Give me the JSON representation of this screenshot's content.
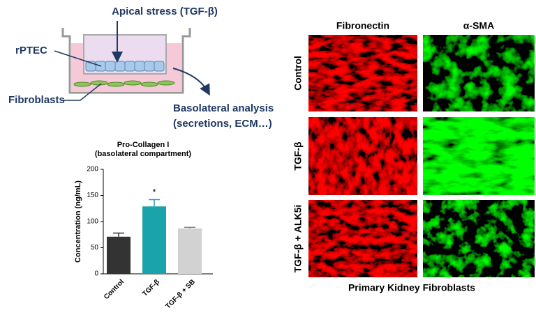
{
  "diagram": {
    "apical_label": "Apical stress (TGF-β)",
    "cells_label": "rPTEC",
    "fibroblasts_label": "Fibroblasts",
    "basolateral_label": "Basolateral analysis",
    "basolateral_sublabel": "(secretions, ECM…)"
  },
  "chart_data": {
    "type": "bar",
    "title": "Pro-Collagen I",
    "subtitle": "(basolateral compartment)",
    "y_label": "Concentration (ng/mL)",
    "categories": [
      "Control",
      "TGF-β",
      "TGF-β + SB"
    ],
    "values": [
      71,
      129,
      87
    ],
    "errors": [
      7,
      13,
      2
    ],
    "colors": [
      "#333333",
      "#1ba3ab",
      "#d2d2d2"
    ],
    "value_annotations": [
      null,
      "*",
      null
    ],
    "ylim": [
      0,
      200
    ],
    "yticks": [
      0,
      50,
      100,
      150,
      200
    ],
    "grid": false
  },
  "micrographs": {
    "columns": [
      "Fibronectin",
      "α-SMA"
    ],
    "rows": [
      "Control",
      "TGF-β",
      "TGF-β + ALK5i"
    ],
    "caption": "Primary Kidney Fibroblasts"
  }
}
